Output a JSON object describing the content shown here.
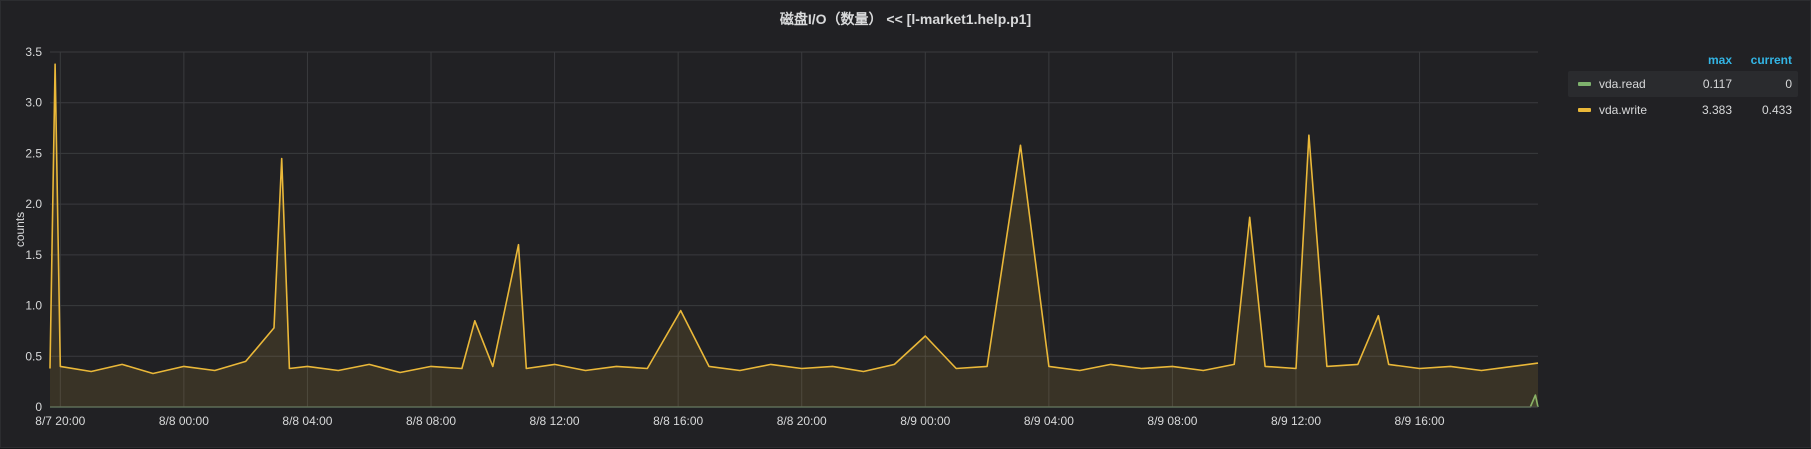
{
  "panel": {
    "title": "磁盘I/O（数量） << [l-market1.help.p1]"
  },
  "legend": {
    "max_header": "max",
    "current_header": "current",
    "items": [
      {
        "name": "vda.read",
        "max": "0.117",
        "current": "0",
        "color": "#7eb26d"
      },
      {
        "name": "vda.write",
        "max": "3.383",
        "current": "0.433",
        "color": "#eab839"
      }
    ]
  },
  "chart_data": {
    "type": "area",
    "ylabel": "counts",
    "xlabel": "",
    "ylim": [
      0,
      3.5
    ],
    "yticks": [
      0,
      0.5,
      1.0,
      1.5,
      2.0,
      2.5,
      3.0,
      3.5
    ],
    "ytick_labels": [
      "0",
      "0.5",
      "1.0",
      "1.5",
      "2.0",
      "2.5",
      "3.0",
      "3.5"
    ],
    "xlim": [
      "2024-08-07T19:40",
      "2024-08-09T19:50"
    ],
    "xticks": [
      "2024-08-07T20:00",
      "2024-08-08T00:00",
      "2024-08-08T04:00",
      "2024-08-08T08:00",
      "2024-08-08T12:00",
      "2024-08-08T16:00",
      "2024-08-08T20:00",
      "2024-08-09T00:00",
      "2024-08-09T04:00",
      "2024-08-09T08:00",
      "2024-08-09T12:00",
      "2024-08-09T16:00"
    ],
    "xtick_labels": [
      "8/7 20:00",
      "8/8 00:00",
      "8/8 04:00",
      "8/8 08:00",
      "8/8 12:00",
      "8/8 16:00",
      "8/8 20:00",
      "8/9 00:00",
      "8/9 04:00",
      "8/9 08:00",
      "8/9 12:00",
      "8/9 16:00"
    ],
    "grid": true,
    "legend_position": "right",
    "series": [
      {
        "name": "vda.read",
        "color": "#7eb26d",
        "x": [
          "2024-08-07T19:40",
          "2024-08-09T19:35",
          "2024-08-09T19:45",
          "2024-08-09T19:50"
        ],
        "values": [
          0,
          0,
          0.117,
          0
        ]
      },
      {
        "name": "vda.write",
        "color": "#eab839",
        "x": [
          "2024-08-07T19:40",
          "2024-08-07T19:50",
          "2024-08-07T20:00",
          "2024-08-07T21:00",
          "2024-08-07T22:00",
          "2024-08-07T23:00",
          "2024-08-08T00:00",
          "2024-08-08T01:00",
          "2024-08-08T02:00",
          "2024-08-08T02:55",
          "2024-08-08T03:10",
          "2024-08-08T03:25",
          "2024-08-08T04:00",
          "2024-08-08T05:00",
          "2024-08-08T06:00",
          "2024-08-08T07:00",
          "2024-08-08T08:00",
          "2024-08-08T09:00",
          "2024-08-08T09:25",
          "2024-08-08T10:00",
          "2024-08-08T10:50",
          "2024-08-08T11:05",
          "2024-08-08T12:00",
          "2024-08-08T13:00",
          "2024-08-08T14:00",
          "2024-08-08T15:00",
          "2024-08-08T16:05",
          "2024-08-08T17:00",
          "2024-08-08T18:00",
          "2024-08-08T19:00",
          "2024-08-08T20:00",
          "2024-08-08T21:00",
          "2024-08-08T22:00",
          "2024-08-08T23:00",
          "2024-08-09T00:00",
          "2024-08-09T01:00",
          "2024-08-09T02:00",
          "2024-08-09T03:05",
          "2024-08-09T04:00",
          "2024-08-09T05:00",
          "2024-08-09T06:00",
          "2024-08-09T07:00",
          "2024-08-09T08:00",
          "2024-08-09T09:00",
          "2024-08-09T10:00",
          "2024-08-09T10:30",
          "2024-08-09T11:00",
          "2024-08-09T12:00",
          "2024-08-09T12:25",
          "2024-08-09T13:00",
          "2024-08-09T14:00",
          "2024-08-09T14:40",
          "2024-08-09T15:00",
          "2024-08-09T16:00",
          "2024-08-09T17:00",
          "2024-08-09T18:00",
          "2024-08-09T19:00",
          "2024-08-09T19:50"
        ],
        "values": [
          0.38,
          3.38,
          0.4,
          0.35,
          0.42,
          0.33,
          0.4,
          0.36,
          0.45,
          0.78,
          2.45,
          0.38,
          0.4,
          0.36,
          0.42,
          0.34,
          0.4,
          0.38,
          0.85,
          0.4,
          1.6,
          0.38,
          0.42,
          0.36,
          0.4,
          0.38,
          0.95,
          0.4,
          0.36,
          0.42,
          0.38,
          0.4,
          0.35,
          0.42,
          0.7,
          0.38,
          0.4,
          2.58,
          0.4,
          0.36,
          0.42,
          0.38,
          0.4,
          0.36,
          0.42,
          1.87,
          0.4,
          0.38,
          2.68,
          0.4,
          0.42,
          0.9,
          0.42,
          0.38,
          0.4,
          0.36,
          0.4,
          0.433
        ]
      }
    ]
  }
}
